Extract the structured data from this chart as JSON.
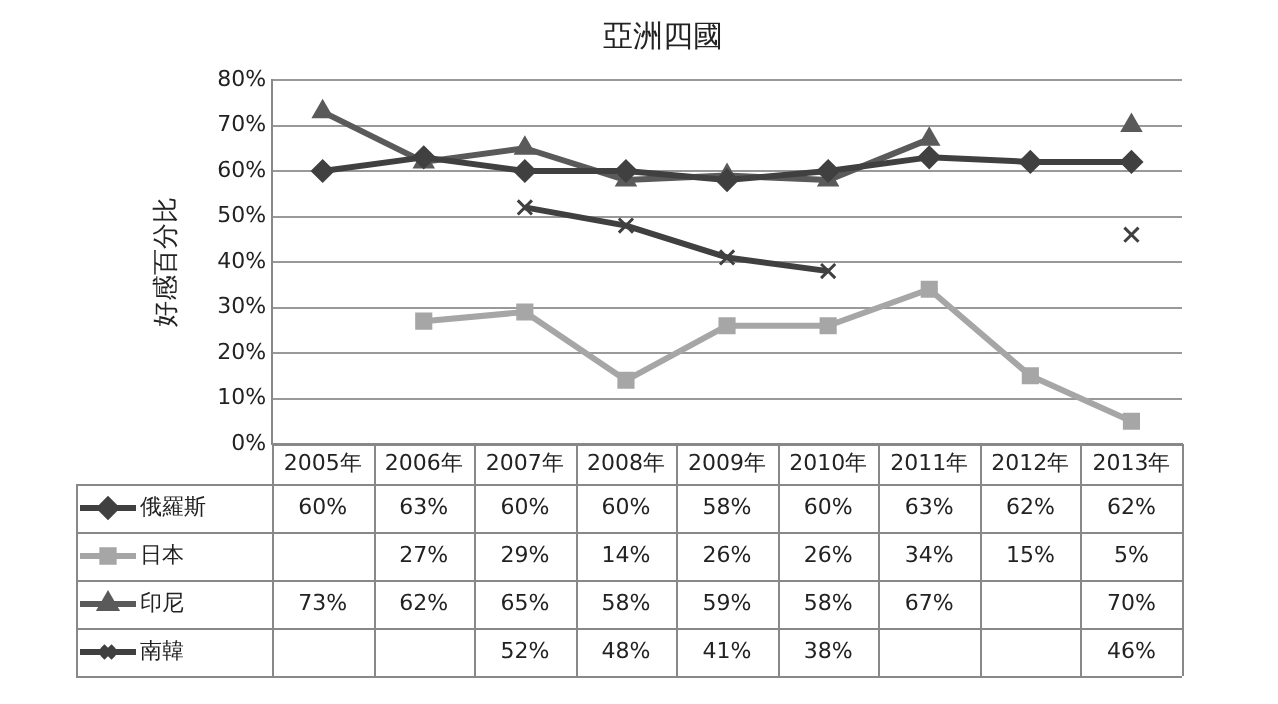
{
  "chart_data": {
    "type": "line",
    "title": "亞洲四國",
    "ylabel": "好感百分比",
    "categories": [
      "2005年",
      "2006年",
      "2007年",
      "2008年",
      "2009年",
      "2010年",
      "2011年",
      "2012年",
      "2013年"
    ],
    "ylim": [
      0,
      80
    ],
    "yticks": [
      {
        "value": 0,
        "label": "0%"
      },
      {
        "value": 10,
        "label": "10%"
      },
      {
        "value": 20,
        "label": "20%"
      },
      {
        "value": 30,
        "label": "30%"
      },
      {
        "value": 40,
        "label": "40%"
      },
      {
        "value": 50,
        "label": "50%"
      },
      {
        "value": 60,
        "label": "60%"
      },
      {
        "value": 70,
        "label": "70%"
      },
      {
        "value": 80,
        "label": "80%"
      }
    ],
    "grid": "y",
    "legend": "bottom left",
    "series": [
      {
        "name": "俄羅斯",
        "color": "#404040",
        "marker": "diamond",
        "values": [
          60,
          63,
          60,
          60,
          58,
          60,
          63,
          62,
          62
        ],
        "value_labels": [
          "60%",
          "63%",
          "60%",
          "60%",
          "58%",
          "60%",
          "63%",
          "62%",
          "62%"
        ]
      },
      {
        "name": "日本",
        "color": "#a6a6a6",
        "marker": "square",
        "values": [
          null,
          27,
          29,
          14,
          26,
          26,
          34,
          15,
          5
        ],
        "value_labels": [
          null,
          "27%",
          "29%",
          "14%",
          "26%",
          "26%",
          "34%",
          "15%",
          "5%"
        ]
      },
      {
        "name": "印尼",
        "color": "#5a5a5a",
        "marker": "triangle",
        "values": [
          73,
          62,
          65,
          58,
          59,
          58,
          67,
          null,
          70
        ],
        "value_labels": [
          "73%",
          "62%",
          "65%",
          "58%",
          "59%",
          "58%",
          "67%",
          null,
          "70%"
        ]
      },
      {
        "name": "南韓",
        "color": "#404040",
        "marker": "cross",
        "values": [
          null,
          null,
          52,
          48,
          41,
          38,
          null,
          null,
          46
        ],
        "value_labels": [
          null,
          null,
          "52%",
          "48%",
          "41%",
          "38%",
          null,
          null,
          "46%"
        ]
      }
    ]
  }
}
